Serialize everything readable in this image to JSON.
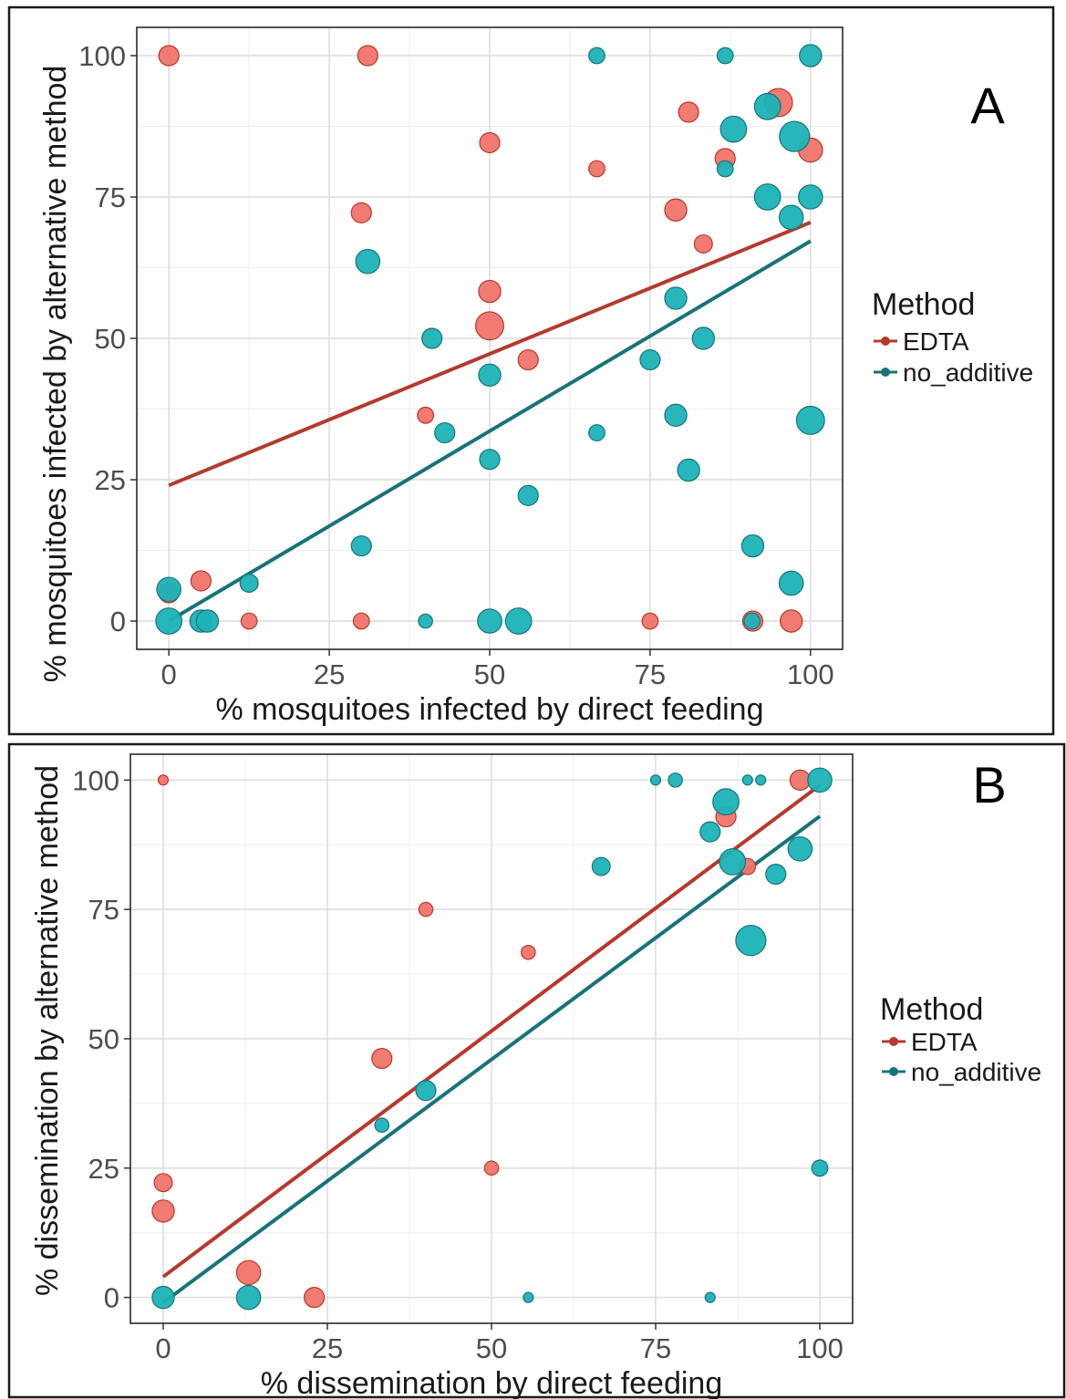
{
  "colors": {
    "EDTA_point": "#F0736A",
    "EDTA_line": "#B5392E",
    "no_additive_point": "#1BB3B6",
    "no_additive_line": "#187379",
    "grid": "#dcdcdc",
    "frame": "#1a1a1a"
  },
  "chart_data": [
    {
      "type": "scatter",
      "panel_label": "A",
      "xlabel": "% mosquitoes infected by direct feeding",
      "ylabel": "% mosquitoes infected by alternative method",
      "xlim": [
        -5,
        105
      ],
      "ylim": [
        -5,
        105
      ],
      "xticks": [
        0,
        25,
        50,
        75,
        100
      ],
      "yticks": [
        0,
        25,
        50,
        75,
        100
      ],
      "grid": true,
      "legend": {
        "title": "Method",
        "placement": "right"
      },
      "series": [
        {
          "name": "EDTA",
          "x": [
            0,
            31,
            50,
            66.7,
            81,
            95,
            100,
            86.7,
            30,
            79,
            83.3,
            50,
            50,
            56,
            40,
            5,
            0,
            12.5,
            30,
            75,
            91,
            97
          ],
          "y": [
            100,
            100,
            84.6,
            80,
            90,
            91.7,
            83.3,
            81.8,
            72.2,
            72.7,
            66.7,
            58.3,
            52.2,
            46.2,
            36.4,
            7.1,
            5,
            0,
            0,
            0,
            0,
            0
          ],
          "size": [
            1,
            1,
            1,
            0.8,
            1,
            1.4,
            1.2,
            1,
            1,
            1.1,
            0.9,
            1.1,
            1.4,
            1,
            0.8,
            1,
            1,
            0.8,
            0.8,
            0.8,
            1,
            1.1
          ],
          "trend": {
            "intercept": 24,
            "slope": 0.465
          }
        },
        {
          "name": "no_additive",
          "x": [
            66.7,
            86.7,
            100,
            88,
            93.3,
            97.5,
            86.7,
            93.3,
            100,
            97,
            31,
            79,
            41,
            83.3,
            75,
            50,
            100,
            79,
            43,
            66.7,
            50,
            81,
            56,
            30,
            91,
            12.5,
            97,
            0,
            0,
            5,
            6,
            40,
            50,
            54.5,
            90.9
          ],
          "y": [
            100,
            100,
            100,
            87,
            91,
            85.7,
            80,
            75,
            75,
            71.4,
            63.6,
            57.1,
            50,
            50,
            46.2,
            43.5,
            35.5,
            36.4,
            33.3,
            33.3,
            28.6,
            26.7,
            22.2,
            13.3,
            13.3,
            6.7,
            6.7,
            5.6,
            0,
            0,
            0,
            0,
            0,
            0,
            0
          ],
          "size": [
            0.8,
            0.8,
            1.1,
            1.3,
            1.3,
            1.5,
            0.8,
            1.3,
            1.2,
            1.2,
            1.2,
            1.1,
            1,
            1.1,
            1,
            1.1,
            1.4,
            1.1,
            1,
            0.8,
            1,
            1.1,
            1,
            1,
            1.1,
            0.9,
            1.2,
            1.2,
            1.3,
            1.1,
            1.1,
            0.7,
            1.2,
            1.3,
            0.8
          ],
          "trend": {
            "intercept": 0,
            "slope": 0.672
          }
        }
      ]
    },
    {
      "type": "scatter",
      "panel_label": "B",
      "xlabel": "% dissemination by direct feeding",
      "ylabel": "% dissemination by alternative method",
      "xlim": [
        -5,
        105
      ],
      "ylim": [
        -5,
        105
      ],
      "xticks": [
        0,
        25,
        50,
        75,
        100
      ],
      "yticks": [
        0,
        25,
        50,
        75,
        100
      ],
      "grid": true,
      "legend": {
        "title": "Method",
        "placement": "right"
      },
      "series": [
        {
          "name": "EDTA",
          "x": [
            0,
            97,
            85.7,
            89,
            40,
            55.6,
            33.3,
            0,
            0,
            50,
            13,
            23
          ],
          "y": [
            100,
            100,
            92.9,
            83.3,
            75,
            66.7,
            46.2,
            22.2,
            16.7,
            25,
            4.8,
            0
          ],
          "size": [
            0.5,
            1,
            1,
            0.8,
            0.7,
            0.7,
            1,
            0.9,
            1.1,
            0.7,
            1.2,
            1
          ],
          "trend": {
            "intercept": 4,
            "slope": 0.95
          }
        },
        {
          "name": "no_additive",
          "x": [
            75,
            78,
            89,
            91,
            100,
            85.7,
            83.3,
            86.7,
            97,
            66.7,
            93.3,
            89.5,
            40,
            33.3,
            100,
            0,
            13,
            55.6,
            83.3
          ],
          "y": [
            100,
            100,
            100,
            100,
            100,
            95.8,
            90,
            84.2,
            86.7,
            83.3,
            81.8,
            69,
            40,
            33.3,
            25,
            0,
            0,
            0,
            0
          ],
          "size": [
            0.5,
            0.7,
            0.5,
            0.5,
            1.2,
            1.3,
            1,
            1.3,
            1.2,
            0.9,
            1,
            1.5,
            1,
            0.7,
            0.8,
            1.1,
            1.2,
            0.5,
            0.5
          ],
          "trend": {
            "intercept": -1,
            "slope": 0.94
          }
        }
      ]
    }
  ]
}
